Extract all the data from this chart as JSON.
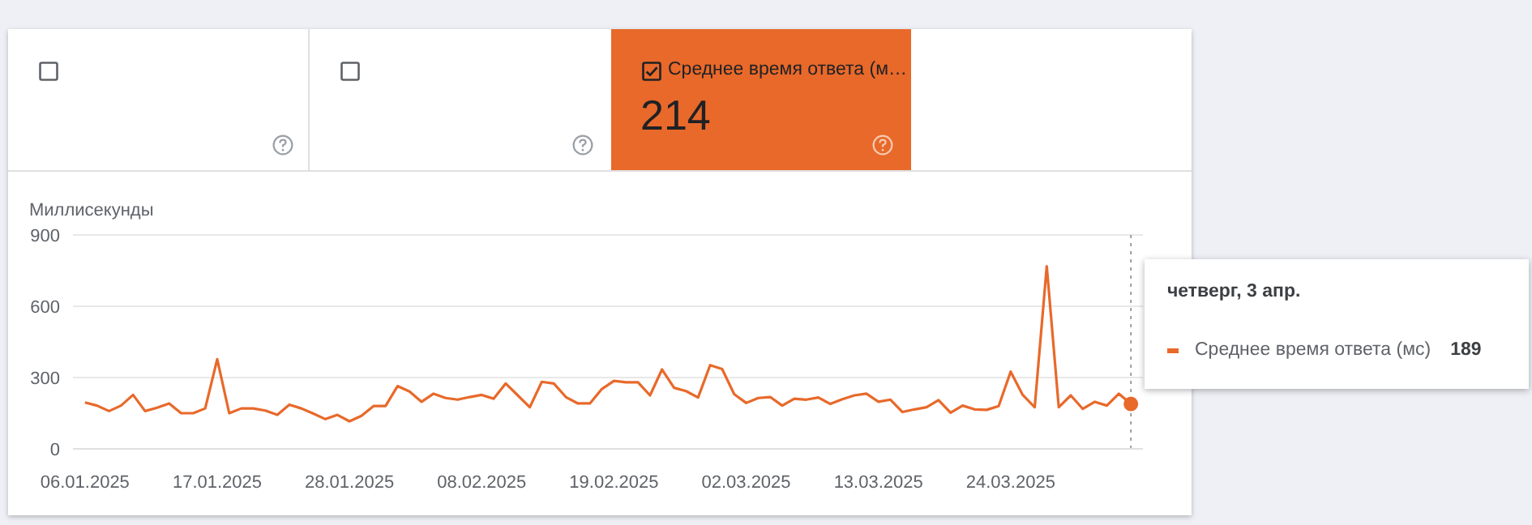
{
  "chart_data": {
    "type": "line",
    "ylabel": "Миллисекунды",
    "annotations": [
      "Среднее время ответа (м…",
      "214",
      "четверг, 3 апр.",
      "189"
    ],
    "x": [
      "2025-01-06",
      "2025-01-07",
      "2025-01-08",
      "2025-01-09",
      "2025-01-10",
      "2025-01-11",
      "2025-01-12",
      "2025-01-13",
      "2025-01-14",
      "2025-01-15",
      "2025-01-16",
      "2025-01-17",
      "2025-01-18",
      "2025-01-19",
      "2025-01-20",
      "2025-01-21",
      "2025-01-22",
      "2025-01-23",
      "2025-01-24",
      "2025-01-25",
      "2025-01-26",
      "2025-01-27",
      "2025-01-28",
      "2025-01-29",
      "2025-01-30",
      "2025-01-31",
      "2025-02-01",
      "2025-02-02",
      "2025-02-03",
      "2025-02-04",
      "2025-02-05",
      "2025-02-06",
      "2025-02-07",
      "2025-02-08",
      "2025-02-09",
      "2025-02-10",
      "2025-02-11",
      "2025-02-12",
      "2025-02-13",
      "2025-02-14",
      "2025-02-15",
      "2025-02-16",
      "2025-02-17",
      "2025-02-18",
      "2025-02-19",
      "2025-02-20",
      "2025-02-21",
      "2025-02-22",
      "2025-02-23",
      "2025-02-24",
      "2025-02-25",
      "2025-02-26",
      "2025-02-27",
      "2025-02-28",
      "2025-03-01",
      "2025-03-02",
      "2025-03-03",
      "2025-03-04",
      "2025-03-05",
      "2025-03-06",
      "2025-03-07",
      "2025-03-08",
      "2025-03-09",
      "2025-03-10",
      "2025-03-11",
      "2025-03-12",
      "2025-03-13",
      "2025-03-14",
      "2025-03-15",
      "2025-03-16",
      "2025-03-17",
      "2025-03-18",
      "2025-03-19",
      "2025-03-20",
      "2025-03-21",
      "2025-03-22",
      "2025-03-23",
      "2025-03-24",
      "2025-03-25",
      "2025-03-26",
      "2025-03-27",
      "2025-03-28",
      "2025-03-29",
      "2025-03-30",
      "2025-03-31",
      "2025-04-01",
      "2025-04-02",
      "2025-04-03"
    ],
    "series": [
      {
        "name": "Среднее время ответа (мс)",
        "color": "#e8692a",
        "values": [
          195,
          182,
          159,
          182,
          227,
          159,
          173,
          191,
          150,
          150,
          170,
          377,
          150,
          170,
          170,
          161,
          143,
          186,
          170,
          148,
          125,
          143,
          116,
          139,
          180,
          180,
          264,
          241,
          198,
          232,
          214,
          207,
          218,
          227,
          211,
          275,
          225,
          175,
          282,
          275,
          218,
          191,
          191,
          252,
          286,
          280,
          280,
          225,
          334,
          257,
          243,
          216,
          352,
          336,
          230,
          193,
          214,
          218,
          182,
          211,
          207,
          216,
          189,
          209,
          225,
          232,
          198,
          207,
          155,
          166,
          175,
          205,
          152,
          182,
          166,
          164,
          180,
          325,
          227,
          175,
          768,
          175,
          225,
          168,
          198,
          182,
          232,
          189
        ]
      }
    ],
    "xlim": [
      "2025-01-05",
      "2025-04-04"
    ],
    "xticks": [
      {
        "value": "2025-01-06",
        "label": "06.01.2025"
      },
      {
        "value": "2025-01-17",
        "label": "17.01.2025"
      },
      {
        "value": "2025-01-28",
        "label": "28.01.2025"
      },
      {
        "value": "2025-02-08",
        "label": "08.02.2025"
      },
      {
        "value": "2025-02-19",
        "label": "19.02.2025"
      },
      {
        "value": "2025-03-02",
        "label": "02.03.2025"
      },
      {
        "value": "2025-03-13",
        "label": "13.03.2025"
      },
      {
        "value": "2025-03-24",
        "label": "24.03.2025"
      }
    ],
    "ylim": [
      0,
      900
    ],
    "yticks": [
      0,
      300,
      600,
      900
    ],
    "ref_lines": [
      {
        "axis": "x",
        "value": "2025-04-03",
        "color": "#9e9e9e",
        "line_style": "dotted"
      }
    ],
    "grid": "y",
    "legend": "right",
    "marker": "none",
    "line_style": "solid"
  }
}
